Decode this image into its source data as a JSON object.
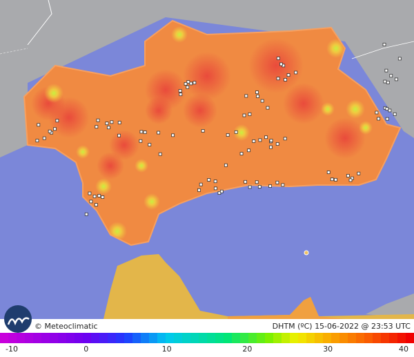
{
  "footer": {
    "brand": "© Meteoclimatic",
    "caption": "DHTM (ºC)  15-06-2022 @ 23:53 UTC"
  },
  "legend": {
    "ticks": [
      -10,
      0,
      10,
      20,
      30,
      40
    ]
  }
}
